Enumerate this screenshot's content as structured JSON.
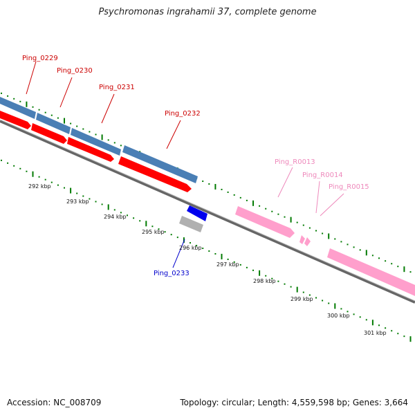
{
  "title": "Psychromonas ingrahamii 37, complete genome",
  "footer": {
    "accession": "Accession: NC_008709",
    "summary": "Topology: circular; Length: 4,559,598 bp; Genes: 3,664"
  },
  "colors": {
    "cds_blue": "#4a7fb5",
    "cds_red": "#ff0000",
    "rna_pink": "#ff9fcc",
    "gene_dark_blue": "#0000ee",
    "pseudo_gray": "#b0b0b0",
    "ticks_green": "#007a00",
    "label_red": "#cc0000",
    "label_pink": "#ee88bb",
    "label_blue": "#0000cc"
  },
  "scale_labels": [
    "292 kbp",
    "293 kbp",
    "294 kbp",
    "295 kbp",
    "296 kbp",
    "297 kbp",
    "298 kbp",
    "299 kbp",
    "300 kbp",
    "301 kbp"
  ],
  "gene_labels": [
    {
      "text": "Ping_0229",
      "color": "label_red"
    },
    {
      "text": "Ping_0230",
      "color": "label_red"
    },
    {
      "text": "Ping_0231",
      "color": "label_red"
    },
    {
      "text": "Ping_0232",
      "color": "label_red"
    },
    {
      "text": "Ping_R0013",
      "color": "label_pink"
    },
    {
      "text": "Ping_R0014",
      "color": "label_pink"
    },
    {
      "text": "Ping_R0015",
      "color": "label_pink"
    },
    {
      "text": "Ping_0233",
      "color": "label_blue"
    }
  ]
}
